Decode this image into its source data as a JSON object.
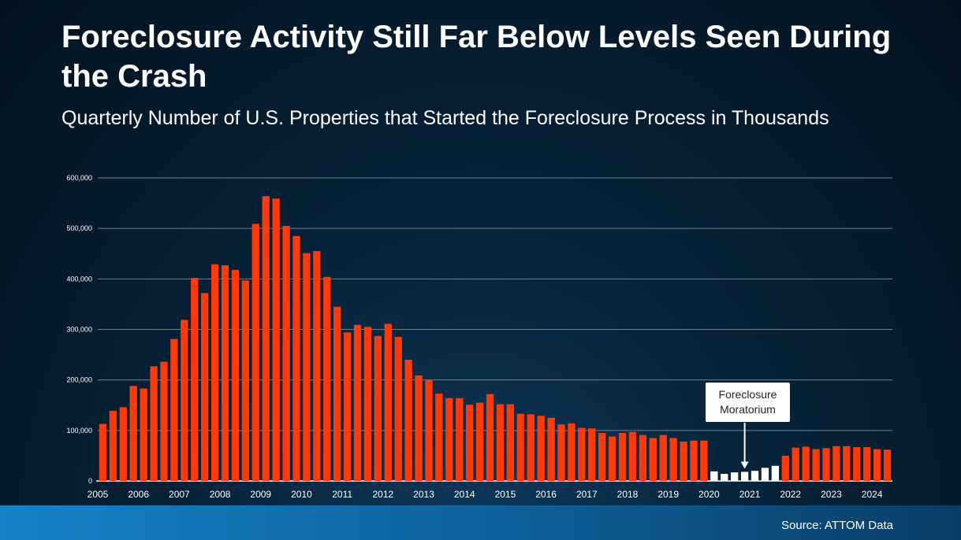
{
  "header": {
    "title": "Foreclosure Activity Still Far Below Levels Seen During the Crash",
    "subtitle": "Quarterly Number of U.S. Properties that Started the Foreclosure Process in Thousands"
  },
  "annotation": {
    "line1": "Foreclosure",
    "line2": "Moratorium"
  },
  "footer": {
    "source": "Source: ATTOM Data"
  },
  "colors": {
    "bar": "#ff3a0a",
    "bar_moratorium": "#ffffff",
    "grid": "#6e7f8e",
    "text": "#ffffff"
  },
  "chart_data": {
    "type": "bar",
    "title": "Foreclosure Activity Still Far Below Levels Seen During the Crash",
    "subtitle": "Quarterly Number of U.S. Properties that Started the Foreclosure Process in Thousands",
    "ylim": [
      0,
      600000
    ],
    "y_ticks": [
      "0",
      "100,000",
      "200,000",
      "300,000",
      "400,000",
      "500,000",
      "600,000"
    ],
    "x_tick_labels": [
      "2005",
      "2006",
      "2007",
      "2008",
      "2009",
      "2010",
      "2011",
      "2012",
      "2013",
      "2014",
      "2015",
      "2016",
      "2017",
      "2018",
      "2019",
      "2020",
      "2021",
      "2022",
      "2023",
      "2024"
    ],
    "grid": true,
    "moratorium_index_range": [
      60,
      66
    ],
    "annotation_arrow_index": 63,
    "values": [
      113000,
      139000,
      146000,
      188000,
      183000,
      227000,
      236000,
      281000,
      319000,
      402000,
      372000,
      429000,
      427000,
      418000,
      397000,
      509000,
      564000,
      559000,
      505000,
      485000,
      451000,
      455000,
      404000,
      345000,
      294000,
      309000,
      305000,
      287000,
      311000,
      285000,
      240000,
      209000,
      200000,
      173000,
      164000,
      164000,
      151000,
      155000,
      172000,
      152000,
      152000,
      133000,
      132000,
      129000,
      125000,
      112000,
      114000,
      105000,
      104000,
      95000,
      88000,
      95000,
      97000,
      91000,
      85000,
      91000,
      85000,
      78000,
      80000,
      80000,
      19000,
      14000,
      17000,
      18000,
      20000,
      26000,
      30000,
      50000,
      66000,
      68000,
      63000,
      65000,
      69000,
      69000,
      67000,
      67000,
      63000,
      62000
    ]
  }
}
